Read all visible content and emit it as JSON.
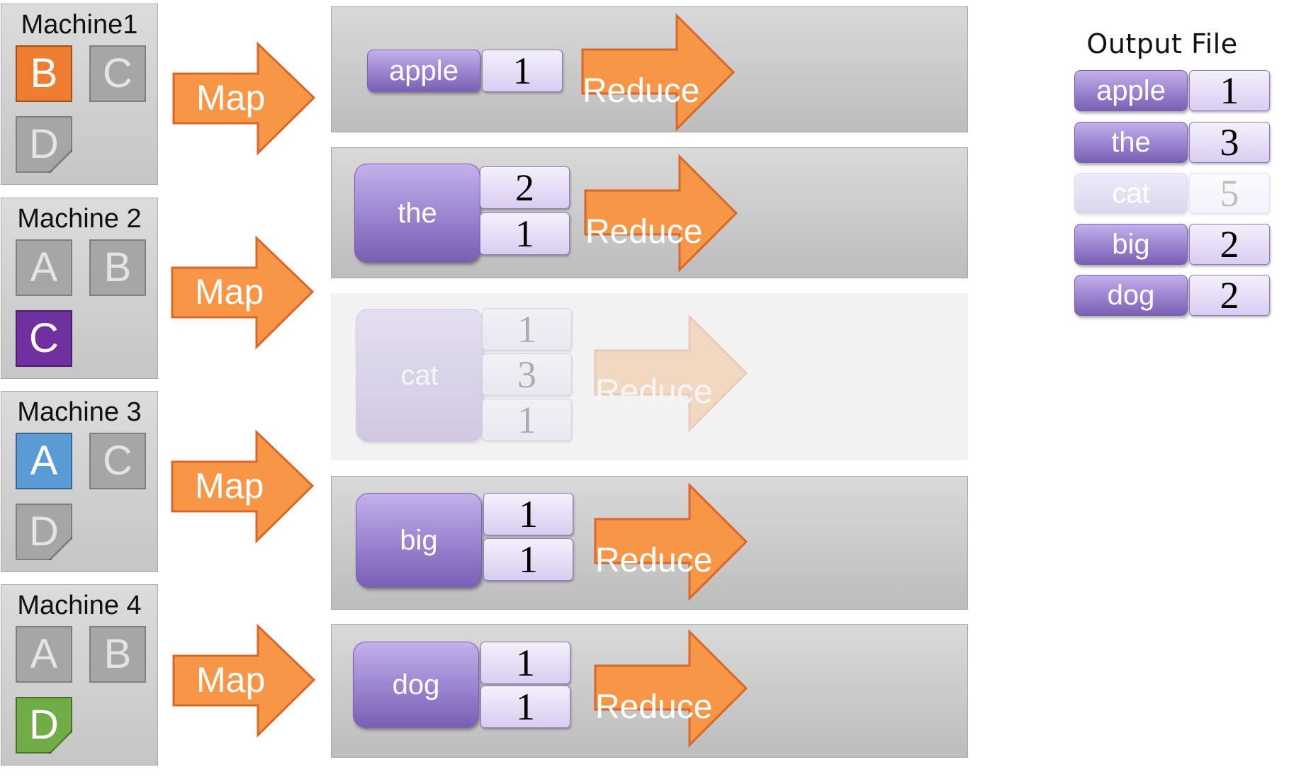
{
  "colors": {
    "map_arrow": "#F79646",
    "map_arrow_stroke": "#D9672A",
    "block_inactive": "#A6A6A6",
    "key_purple": "#9A82CF",
    "count_lavender": "#E6DDF6"
  },
  "machines": [
    {
      "title": "Machine1",
      "blocks": [
        {
          "label": "B",
          "active": true,
          "color": "#ED7D31",
          "shape": "square"
        },
        {
          "label": "C",
          "active": false,
          "color": "#A6A6A6",
          "shape": "square"
        },
        {
          "label": "D",
          "active": false,
          "color": "#A6A6A6",
          "shape": "dogear"
        }
      ]
    },
    {
      "title": "Machine 2",
      "blocks": [
        {
          "label": "A",
          "active": false,
          "color": "#A6A6A6",
          "shape": "square"
        },
        {
          "label": "B",
          "active": false,
          "color": "#A6A6A6",
          "shape": "square"
        },
        {
          "label": "C",
          "active": true,
          "color": "#7030A0",
          "shape": "square"
        }
      ]
    },
    {
      "title": "Machine 3",
      "blocks": [
        {
          "label": "A",
          "active": true,
          "color": "#5B9BD5",
          "shape": "square"
        },
        {
          "label": "C",
          "active": false,
          "color": "#A6A6A6",
          "shape": "square"
        },
        {
          "label": "D",
          "active": false,
          "color": "#A6A6A6",
          "shape": "dogear"
        }
      ]
    },
    {
      "title": "Machine 4",
      "blocks": [
        {
          "label": "A",
          "active": false,
          "color": "#A6A6A6",
          "shape": "square"
        },
        {
          "label": "B",
          "active": false,
          "color": "#A6A6A6",
          "shape": "square"
        },
        {
          "label": "D",
          "active": true,
          "color": "#70AD47",
          "shape": "dogear"
        }
      ]
    }
  ],
  "map_label": "Map",
  "reduce_label": "Reduce",
  "groups": [
    {
      "key": "apple",
      "counts": [
        "1"
      ],
      "faded": false
    },
    {
      "key": "the",
      "counts": [
        "2",
        "1"
      ],
      "faded": false
    },
    {
      "key": "cat",
      "counts": [
        "1",
        "3",
        "1"
      ],
      "faded": true
    },
    {
      "key": "big",
      "counts": [
        "1",
        "1"
      ],
      "faded": false
    },
    {
      "key": "dog",
      "counts": [
        "1",
        "1"
      ],
      "faded": false
    }
  ],
  "output": {
    "title": "Output File",
    "rows": [
      {
        "key": "apple",
        "count": "1",
        "faded": false
      },
      {
        "key": "the",
        "count": "3",
        "faded": false
      },
      {
        "key": "cat",
        "count": "5",
        "faded": true
      },
      {
        "key": "big",
        "count": "2",
        "faded": false
      },
      {
        "key": "dog",
        "count": "2",
        "faded": false
      }
    ]
  }
}
